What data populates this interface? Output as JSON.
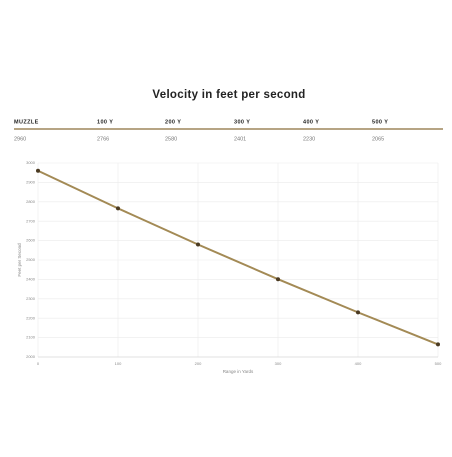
{
  "title": "Velocity in feet per second",
  "table": {
    "headers": [
      "MUZZLE",
      "100 Y",
      "200 Y",
      "300 Y",
      "400 Y",
      "500 Y"
    ]
  },
  "chart_data": {
    "type": "line",
    "x": [
      0,
      100,
      200,
      300,
      400,
      500
    ],
    "series": [
      {
        "name": "Velocity",
        "color": "#a38a55",
        "marker_color": "#4a3a22",
        "values": [
          2960,
          2766,
          2580,
          2401,
          2230,
          2065
        ]
      }
    ],
    "xlim": [
      0,
      500
    ],
    "xticks": [
      0,
      100,
      200,
      300,
      400,
      500
    ],
    "ylim": [
      2000,
      3000
    ],
    "yticks": [
      2000,
      2100,
      2200,
      2300,
      2400,
      2500,
      2600,
      2700,
      2800,
      2900,
      3000
    ],
    "xlabel": "Range in Yards",
    "ylabel": "Feet per Second",
    "grid": true
  }
}
